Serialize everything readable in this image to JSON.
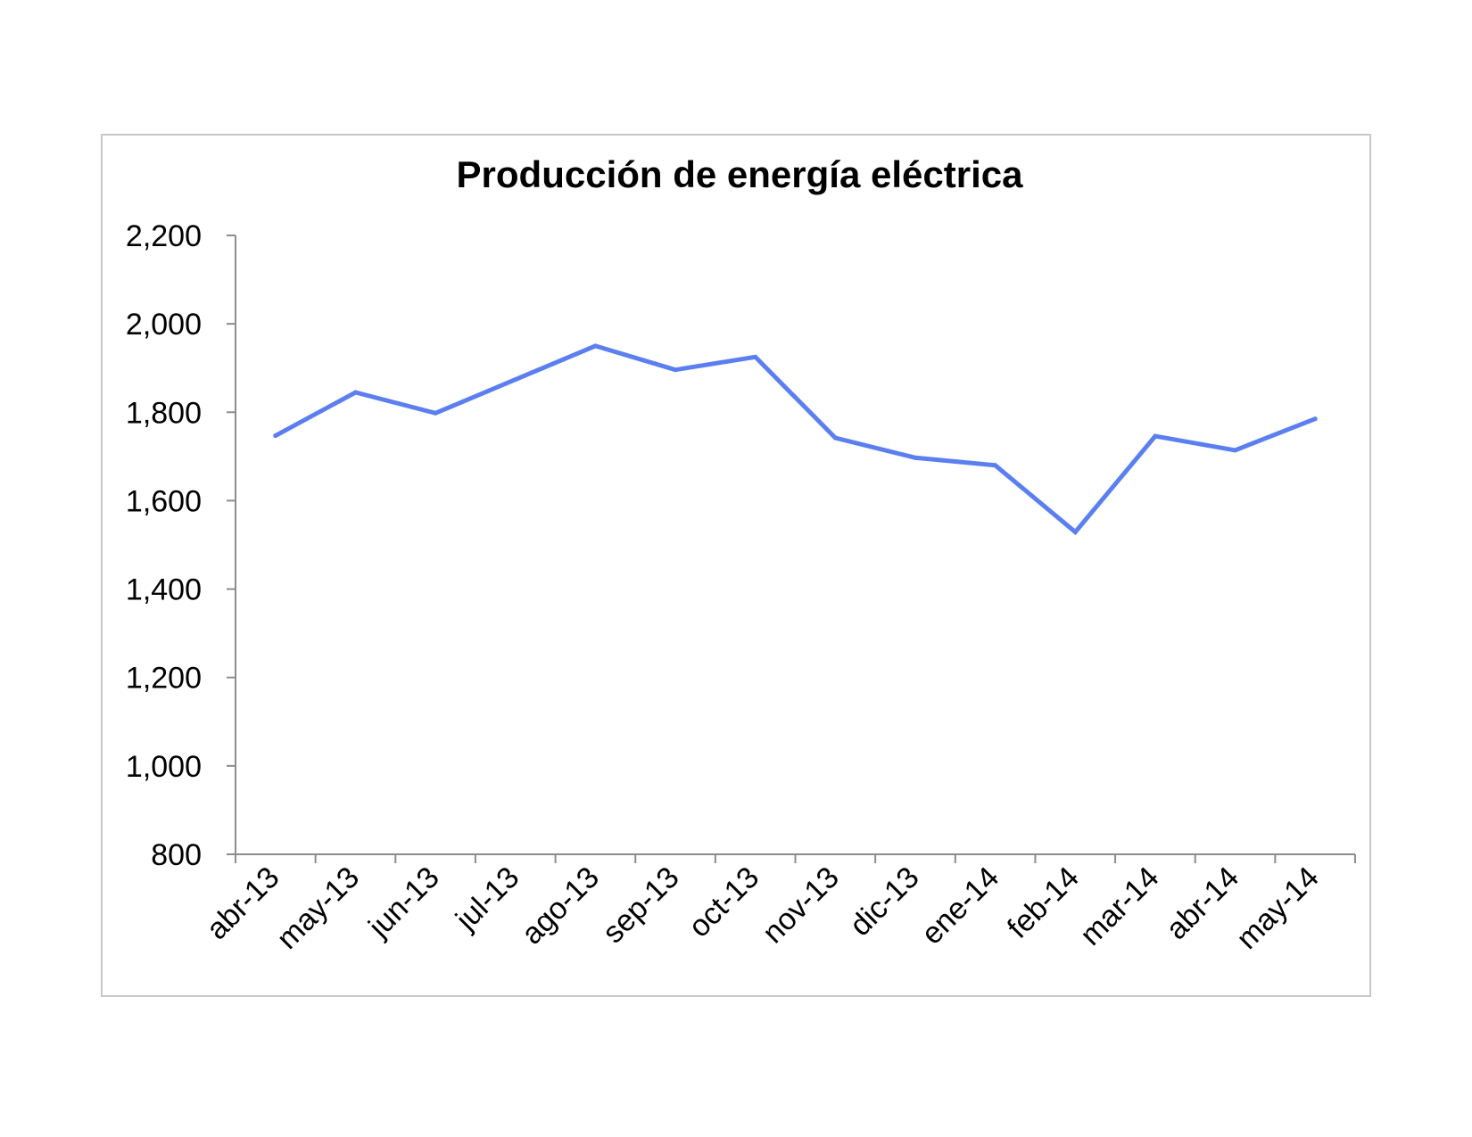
{
  "chart_data": {
    "type": "line",
    "title": "Producción de energía eléctrica",
    "xlabel": "",
    "ylabel": "",
    "categories": [
      "abr-13",
      "may-13",
      "jun-13",
      "jul-13",
      "ago-13",
      "sep-13",
      "oct-13",
      "nov-13",
      "dic-13",
      "ene-14",
      "feb-14",
      "mar-14",
      "abr-14",
      "may-14"
    ],
    "series": [
      {
        "values": [
          1747,
          1845,
          1798,
          1874,
          1950,
          1896,
          1925,
          1742,
          1697,
          1680,
          1529,
          1746,
          1714,
          1785
        ],
        "color": "#5b7ff0"
      }
    ],
    "ylim": [
      800,
      2200
    ],
    "yticks": [
      800,
      1000,
      1200,
      1400,
      1600,
      1800,
      2000,
      2200
    ],
    "ytick_labels": [
      "800",
      "1,000",
      "1,200",
      "1,400",
      "1,600",
      "1,800",
      "2,000",
      "2,200"
    ],
    "grid": false,
    "legend": "none"
  }
}
